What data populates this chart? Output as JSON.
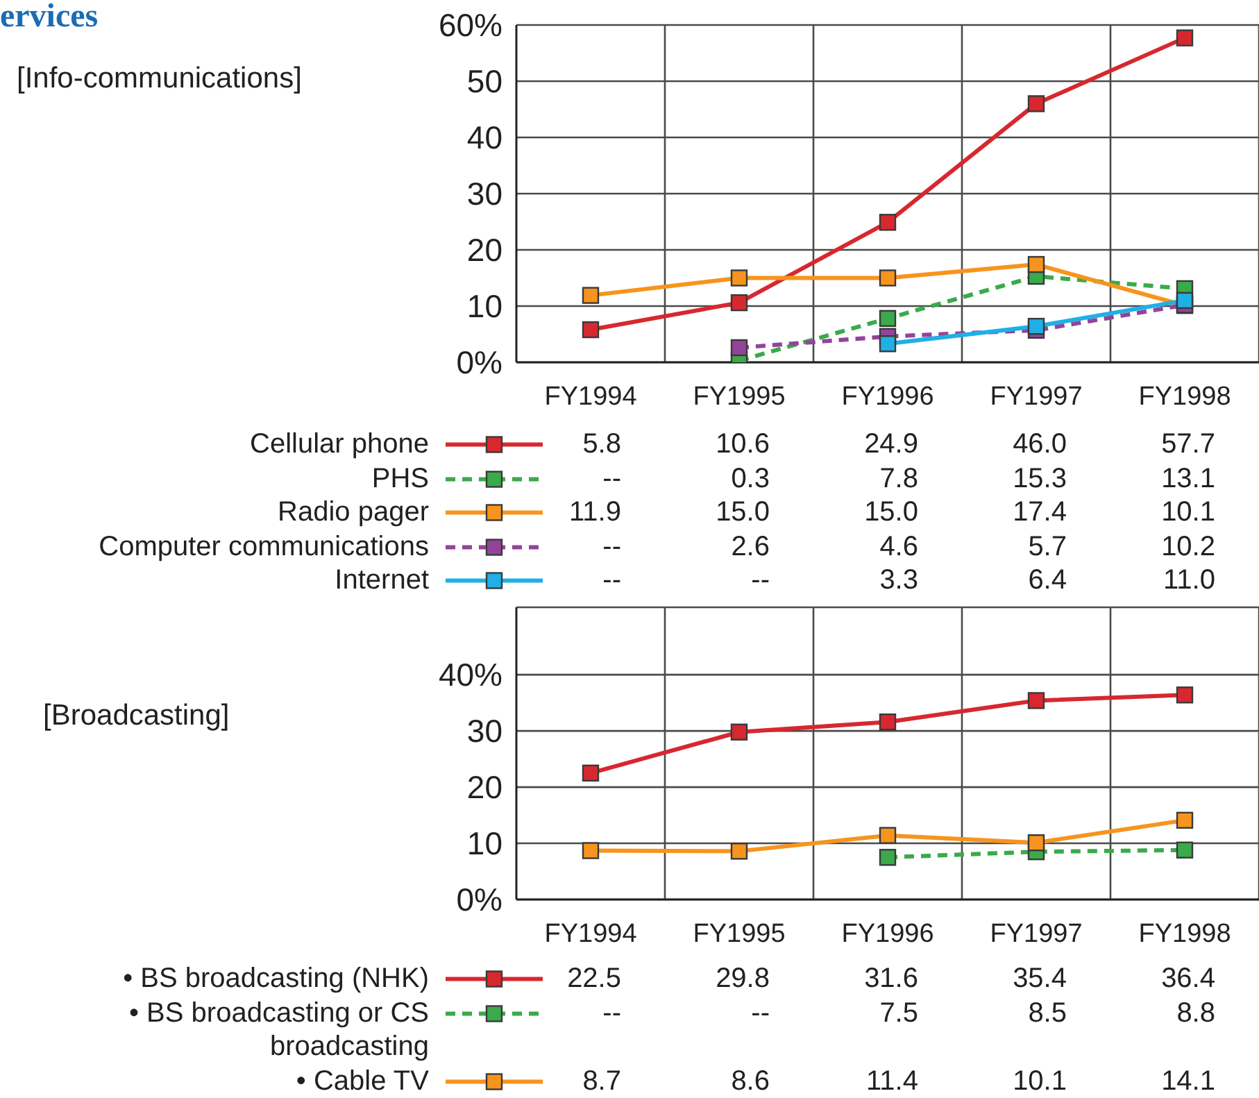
{
  "chart_data": [
    {
      "type": "line",
      "subtitle": "[Info-communications]",
      "annotations": [
        "ervices"
      ],
      "categories": [
        "FY1994",
        "FY1995",
        "FY1996",
        "FY1997",
        "FY1998"
      ],
      "series": [
        {
          "name": "Cellular phone",
          "color": "#d7282f",
          "values": [
            5.8,
            10.6,
            24.9,
            46.0,
            57.7
          ],
          "value_labels": [
            "5.8",
            "10.6",
            "24.9",
            "46.0",
            "57.7"
          ]
        },
        {
          "name": "PHS",
          "color": "#3aaa4a",
          "line_style": "dashed",
          "values": [
            null,
            0.3,
            7.8,
            15.3,
            13.1
          ],
          "value_labels": [
            "--",
            "0.3",
            "7.8",
            "15.3",
            "13.1"
          ]
        },
        {
          "name": "Radio pager",
          "color": "#f7941d",
          "values": [
            11.9,
            15.0,
            15.0,
            17.4,
            10.1
          ],
          "value_labels": [
            "11.9",
            "15.0",
            "15.0",
            "17.4",
            "10.1"
          ]
        },
        {
          "name": "Computer communications",
          "color": "#93449a",
          "line_style": "dashed",
          "values": [
            null,
            2.6,
            4.6,
            5.7,
            10.2
          ],
          "value_labels": [
            "--",
            "2.6",
            "4.6",
            "5.7",
            "10.2"
          ]
        },
        {
          "name": "Internet",
          "color": "#1fb0e6",
          "values": [
            null,
            null,
            3.3,
            6.4,
            11.0
          ],
          "value_labels": [
            "--",
            "--",
            "3.3",
            "6.4",
            "11.0"
          ]
        }
      ],
      "ylim": [
        0,
        60
      ],
      "yticks": [
        {
          "value": 0,
          "label": "0%"
        },
        10,
        20,
        30,
        40,
        50,
        {
          "value": 60,
          "label": "60%"
        }
      ],
      "grid": true,
      "legend": "bottom",
      "marker": "square",
      "line_style": "solid"
    },
    {
      "type": "line",
      "annotations": [
        "[Broadcasting]"
      ],
      "categories": [
        "FY1994",
        "FY1995",
        "FY1996",
        "FY1997",
        "FY1998"
      ],
      "series": [
        {
          "name": "• BS broadcasting (NHK)",
          "color": "#d7282f",
          "values": [
            22.5,
            29.8,
            31.6,
            35.4,
            36.4
          ],
          "value_labels": [
            "22.5",
            "29.8",
            "31.6",
            "35.4",
            "36.4"
          ]
        },
        {
          "name": "• BS broadcasting or CS broadcasting",
          "color": "#3aaa4a",
          "line_style": "dashed",
          "values": [
            null,
            null,
            7.5,
            8.5,
            8.8
          ],
          "value_labels": [
            "--",
            "--",
            "7.5",
            "8.5",
            "8.8"
          ]
        },
        {
          "name": "• Cable TV",
          "color": "#f7941d",
          "values": [
            8.7,
            8.6,
            11.4,
            10.1,
            14.1
          ],
          "value_labels": [
            "8.7",
            "8.6",
            "11.4",
            "10.1",
            "14.1"
          ]
        }
      ],
      "ylim": [
        0,
        52
      ],
      "yticks": [
        {
          "value": 0,
          "label": "0%"
        },
        10,
        20,
        30,
        {
          "value": 40,
          "label": "40%"
        }
      ],
      "grid": true,
      "legend": "bottom",
      "marker": "square",
      "line_style": "solid"
    }
  ]
}
